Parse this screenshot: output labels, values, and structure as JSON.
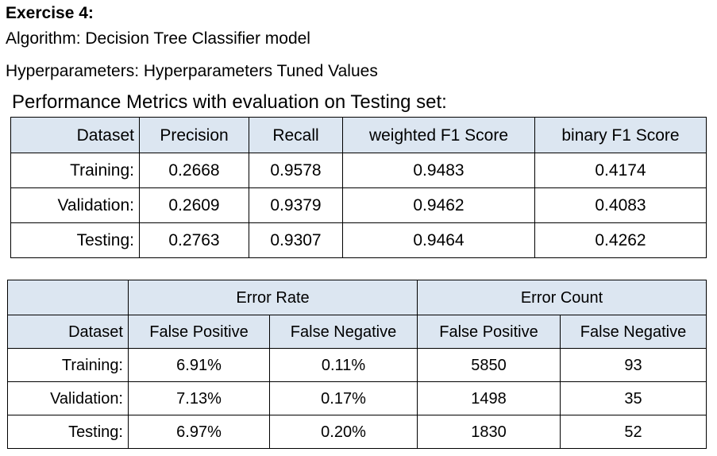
{
  "heading": {
    "title": "Exercise 4:",
    "algorithm": "Algorithm: Decision Tree Classifier model",
    "hyperparameters": "Hyperparameters: Hyperparameters Tuned Values",
    "performance": "Performance Metrics with evaluation on Testing set:"
  },
  "metrics_table": {
    "headers": [
      "Dataset",
      "Precision",
      "Recall",
      "weighted F1 Score",
      "binary F1 Score"
    ],
    "rows": [
      [
        "Training:",
        "0.2668",
        "0.9578",
        "0.9483",
        "0.4174"
      ],
      [
        "Validation:",
        "0.2609",
        "0.9379",
        "0.9462",
        "0.4083"
      ],
      [
        "Testing:",
        "0.2763",
        "0.9307",
        "0.9464",
        "0.4262"
      ]
    ]
  },
  "error_table": {
    "group_headers": [
      "Error Rate",
      "Error Count"
    ],
    "headers": [
      "Dataset",
      "False Positive",
      "False Negative",
      "False Positive",
      "False Negative"
    ],
    "rows": [
      [
        "Training:",
        "6.91%",
        "0.11%",
        "5850",
        "93"
      ],
      [
        "Validation:",
        "7.13%",
        "0.17%",
        "1498",
        "35"
      ],
      [
        "Testing:",
        "6.97%",
        "0.20%",
        "1830",
        "52"
      ]
    ]
  },
  "colors": {
    "header_fill": "#dce6f1",
    "border": "#000000"
  }
}
